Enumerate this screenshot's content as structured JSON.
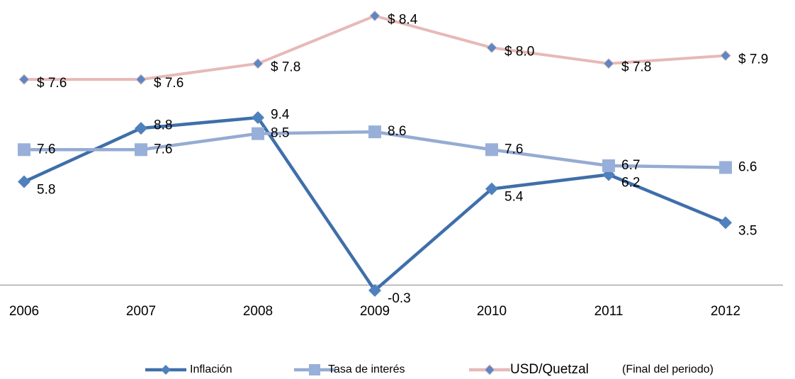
{
  "chart_data": {
    "type": "line",
    "categories": [
      "2006",
      "2007",
      "2008",
      "2009",
      "2010",
      "2011",
      "2012"
    ],
    "ylim": [
      -0.5,
      16
    ],
    "y2lim": [
      4.9,
      8.6
    ],
    "legend_note": "(Final del periodo)",
    "series": [
      {
        "name": "Inflación",
        "color": "#3f6faa",
        "marker_color": "#4f81bd",
        "marker": "diamond",
        "values": [
          5.8,
          8.8,
          9.4,
          -0.3,
          5.4,
          6.2,
          3.5
        ]
      },
      {
        "name": "Tasa de interés",
        "color": "#95abd3",
        "marker_color": "#98b0d9",
        "marker": "square",
        "values": [
          7.6,
          7.6,
          8.5,
          8.6,
          7.6,
          6.7,
          6.6
        ]
      },
      {
        "name": "USD/Quetzal",
        "color": "#e6b9b8",
        "marker_color": "#5a87c6",
        "marker": "diamond",
        "axis": "y2",
        "values": [
          7.6,
          7.6,
          7.8,
          8.4,
          8.0,
          7.8,
          7.9
        ],
        "value_labels": [
          "$ 7.6",
          "$ 7.6",
          "$ 7.8",
          "$ 8.4",
          "$ 8.0",
          "$ 7.8",
          "$ 7.9"
        ]
      }
    ]
  }
}
